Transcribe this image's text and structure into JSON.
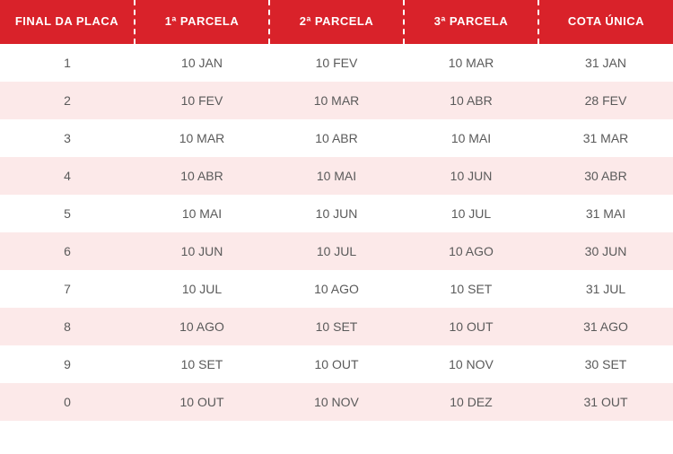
{
  "table": {
    "columns": [
      "FINAL DA PLACA",
      "1ª PARCELA",
      "2ª PARCELA",
      "3ª PARCELA",
      "COTA ÚNICA"
    ],
    "rows": [
      [
        "1",
        "10 JAN",
        "10 FEV",
        "10 MAR",
        "31 JAN"
      ],
      [
        "2",
        "10 FEV",
        "10 MAR",
        "10 ABR",
        "28 FEV"
      ],
      [
        "3",
        "10 MAR",
        "10 ABR",
        "10 MAI",
        "31 MAR"
      ],
      [
        "4",
        "10 ABR",
        "10 MAI",
        "10 JUN",
        "30 ABR"
      ],
      [
        "5",
        "10 MAI",
        "10 JUN",
        "10 JUL",
        "31 MAI"
      ],
      [
        "6",
        "10 JUN",
        "10 JUL",
        "10 AGO",
        "30 JUN"
      ],
      [
        "7",
        "10 JUL",
        "10 AGO",
        "10 SET",
        "31 JUL"
      ],
      [
        "8",
        "10 AGO",
        "10 SET",
        "10 OUT",
        "31 AGO"
      ],
      [
        "9",
        "10 SET",
        "10 OUT",
        "10 NOV",
        "30 SET"
      ],
      [
        "0",
        "10 OUT",
        "10 NOV",
        "10 DEZ",
        "31 OUT"
      ]
    ],
    "style": {
      "header_bg": "#d9222a",
      "header_text_color": "#ffffff",
      "row_odd_bg": "#ffffff",
      "row_even_bg": "#fce9e9",
      "cell_text_color": "#5a5a5a",
      "header_border_style": "dashed",
      "header_border_color": "#ffffff",
      "header_font_size_pt": 10,
      "cell_font_size_pt": 11,
      "column_widths_pct": [
        20,
        20,
        20,
        20,
        20
      ]
    }
  }
}
